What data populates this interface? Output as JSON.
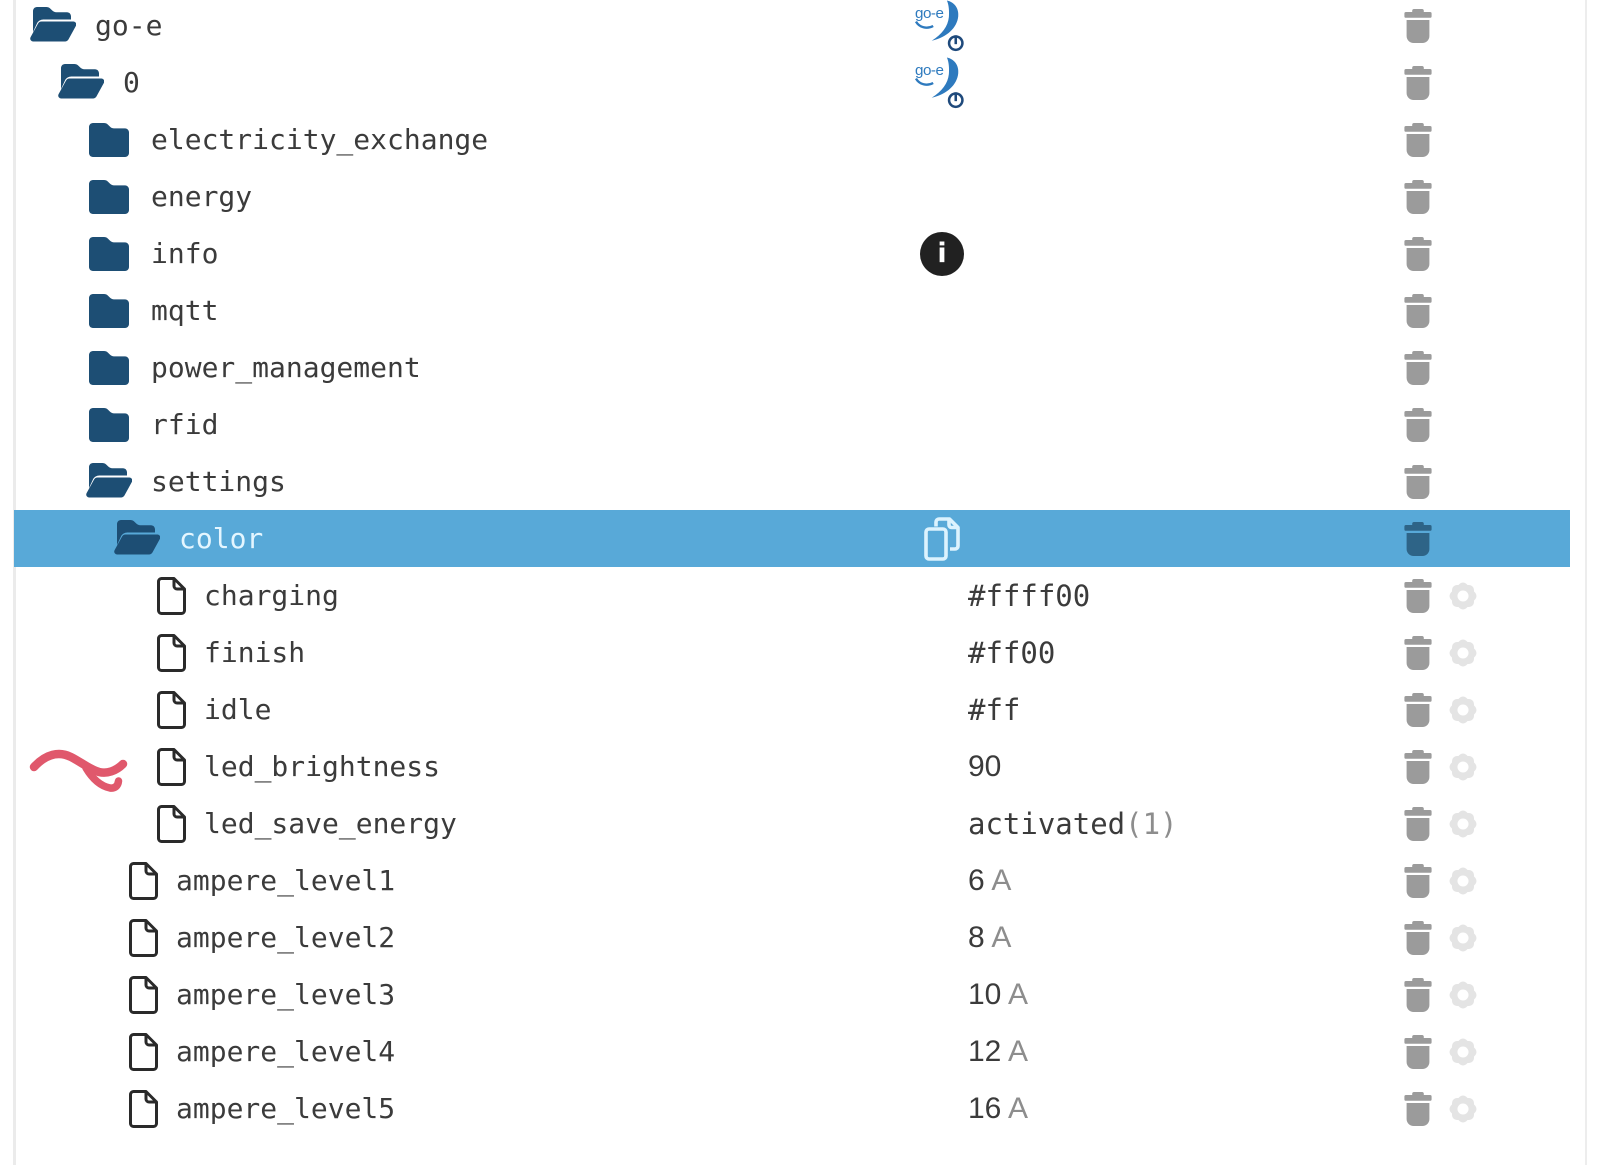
{
  "colors": {
    "folder": "#1d4e74",
    "selected_bg": "#58a9d8",
    "selected_text": "#e4f6ff",
    "label": "#3b3b3b",
    "value": "#3b3b3b",
    "value_muted": "#8d8d8d",
    "trash": "#9b9b9b",
    "trash_selected": "#2e6487",
    "gear": "#e4e4e4",
    "info_bg": "#212121",
    "logo_blue": "#2e7abe",
    "logo_navy": "#1f4a7c",
    "annotation": "#e0586c"
  },
  "tree": {
    "info_glyph": "i",
    "rows": [
      {
        "id": "go-e",
        "label": "go-e",
        "kind": "folder-open",
        "depth": 0,
        "mid": "goe-logo",
        "actions": [
          "delete"
        ]
      },
      {
        "id": "0",
        "label": "0",
        "kind": "folder-open",
        "depth": 1,
        "mid": "goe-logo",
        "actions": [
          "delete"
        ]
      },
      {
        "id": "electricity_exchange",
        "label": "electricity_exchange",
        "kind": "folder-closed",
        "depth": 2,
        "actions": [
          "delete"
        ]
      },
      {
        "id": "energy",
        "label": "energy",
        "kind": "folder-closed",
        "depth": 2,
        "actions": [
          "delete"
        ]
      },
      {
        "id": "info",
        "label": "info",
        "kind": "folder-closed",
        "depth": 2,
        "mid": "info-badge",
        "actions": [
          "delete"
        ]
      },
      {
        "id": "mqtt",
        "label": "mqtt",
        "kind": "folder-closed",
        "depth": 2,
        "actions": [
          "delete"
        ]
      },
      {
        "id": "power_management",
        "label": "power_management",
        "kind": "folder-closed",
        "depth": 2,
        "actions": [
          "delete"
        ]
      },
      {
        "id": "rfid",
        "label": "rfid",
        "kind": "folder-closed",
        "depth": 2,
        "actions": [
          "delete"
        ]
      },
      {
        "id": "settings",
        "label": "settings",
        "kind": "folder-open",
        "depth": 2,
        "actions": [
          "delete"
        ]
      },
      {
        "id": "color",
        "label": "color",
        "kind": "folder-open",
        "depth": 3,
        "selected": true,
        "mid": "copy-button",
        "actions": [
          "delete"
        ]
      },
      {
        "id": "charging",
        "label": "charging",
        "kind": "file",
        "depth": 4,
        "value": {
          "text": "#ffff00",
          "muted": "",
          "font": "mono"
        },
        "actions": [
          "delete",
          "edit"
        ]
      },
      {
        "id": "finish",
        "label": "finish",
        "kind": "file",
        "depth": 4,
        "value": {
          "text": "#ff00",
          "muted": "",
          "font": "mono"
        },
        "actions": [
          "delete",
          "edit"
        ]
      },
      {
        "id": "idle",
        "label": "idle",
        "kind": "file",
        "depth": 4,
        "value": {
          "text": "#ff",
          "muted": "",
          "font": "mono"
        },
        "actions": [
          "delete",
          "edit"
        ]
      },
      {
        "id": "led_brightness",
        "label": "led_brightness",
        "kind": "file",
        "depth": 4,
        "annotated": true,
        "value": {
          "text": "90",
          "muted": "",
          "font": "sans"
        },
        "actions": [
          "delete",
          "edit"
        ]
      },
      {
        "id": "led_save_energy",
        "label": "led_save_energy",
        "kind": "file",
        "depth": 4,
        "value": {
          "text": "activated",
          "muted": "(1)",
          "font": "mono"
        },
        "actions": [
          "delete",
          "edit"
        ]
      },
      {
        "id": "ampere_level1",
        "label": "ampere_level1",
        "kind": "file",
        "depth": 3,
        "value": {
          "text": "6",
          "muted": " A",
          "font": "sans"
        },
        "actions": [
          "delete",
          "edit"
        ]
      },
      {
        "id": "ampere_level2",
        "label": "ampere_level2",
        "kind": "file",
        "depth": 3,
        "value": {
          "text": "8",
          "muted": " A",
          "font": "sans"
        },
        "actions": [
          "delete",
          "edit"
        ]
      },
      {
        "id": "ampere_level3",
        "label": "ampere_level3",
        "kind": "file",
        "depth": 3,
        "value": {
          "text": "10",
          "muted": " A",
          "font": "sans"
        },
        "actions": [
          "delete",
          "edit"
        ]
      },
      {
        "id": "ampere_level4",
        "label": "ampere_level4",
        "kind": "file",
        "depth": 3,
        "value": {
          "text": "12",
          "muted": " A",
          "font": "sans"
        },
        "actions": [
          "delete",
          "edit"
        ]
      },
      {
        "id": "ampere_level5",
        "label": "ampere_level5",
        "kind": "file",
        "depth": 3,
        "value": {
          "text": "16",
          "muted": " A",
          "font": "sans"
        },
        "actions": [
          "delete",
          "edit"
        ]
      }
    ]
  },
  "annotation": {
    "type": "hand-drawn-arrow",
    "target_row": "led_brightness"
  }
}
